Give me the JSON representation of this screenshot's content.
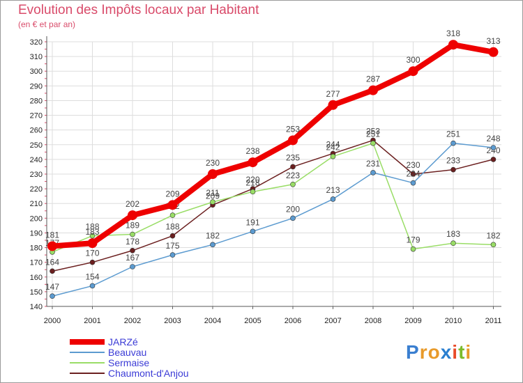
{
  "chart_data": {
    "type": "line",
    "title": "Evolution des Impôts locaux par Habitant",
    "subtitle": "(en € et par an)",
    "xlabel": "",
    "ylabel": "",
    "x": [
      "2000",
      "2001",
      "2002",
      "2003",
      "2004",
      "2005",
      "2006",
      "2007",
      "2008",
      "2009",
      "2010",
      "2011"
    ],
    "ylim": [
      140,
      320
    ],
    "yticks": [
      140,
      150,
      160,
      170,
      180,
      190,
      200,
      210,
      220,
      230,
      240,
      250,
      260,
      270,
      280,
      290,
      300,
      310,
      320
    ],
    "grid": true,
    "legend_position": "bottom-left",
    "series": [
      {
        "name": "JARZé",
        "color": "#ee0000",
        "values": [
          181,
          183,
          202,
          209,
          230,
          238,
          253,
          277,
          287,
          300,
          318,
          313
        ]
      },
      {
        "name": "Beauvau",
        "color": "#5c9bd0",
        "values": [
          147,
          154,
          167,
          175,
          182,
          191,
          200,
          213,
          231,
          224,
          251,
          248
        ]
      },
      {
        "name": "Sermaise",
        "color": "#99dd66",
        "values": [
          177,
          188,
          189,
          202,
          211,
          218,
          223,
          242,
          251,
          179,
          183,
          182
        ]
      },
      {
        "name": "Chaumont-d'Anjou",
        "color": "#6b1f1f",
        "values": [
          164,
          170,
          178,
          188,
          209,
          220,
          235,
          244,
          253,
          230,
          233,
          240
        ]
      }
    ]
  },
  "logo": {
    "letters": [
      "P",
      "r",
      "o",
      "x",
      "i",
      "t",
      "i"
    ],
    "colors": [
      "#3a7fd0",
      "#e89a2a",
      "#e89a2a",
      "#2a7fd0",
      "#e94b2a",
      "#7cbb2a",
      "#e89a2a"
    ]
  }
}
